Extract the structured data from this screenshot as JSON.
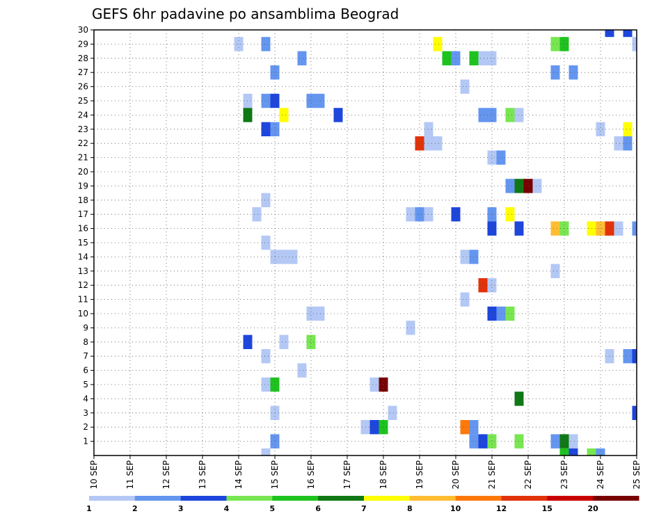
{
  "chart_data": {
    "type": "heatmap",
    "title": "GEFS 6hr padavine po ansamblima Beograd",
    "xlabel": "",
    "ylabel": "",
    "x_tick_labels": [
      "10 SEP",
      "11 SEP",
      "12 SEP",
      "13 SEP",
      "14 SEP",
      "15 SEP",
      "16 SEP",
      "17 SEP",
      "18 SEP",
      "19 SEP",
      "20 SEP",
      "21 SEP",
      "22 SEP",
      "23 SEP",
      "24 SEP",
      "25 SEP"
    ],
    "x_range_days": [
      0,
      15
    ],
    "y_tick_labels": [
      "1",
      "2",
      "3",
      "4",
      "5",
      "6",
      "7",
      "8",
      "9",
      "10",
      "11",
      "12",
      "13",
      "14",
      "15",
      "16",
      "17",
      "18",
      "19",
      "20",
      "21",
      "22",
      "23",
      "24",
      "25",
      "26",
      "27",
      "28",
      "29",
      "30"
    ],
    "y_range": [
      0,
      30
    ],
    "grid": true,
    "legend": {
      "placement": "bottom",
      "colors": [
        "#b4c8f5",
        "#6496f0",
        "#1e46dc",
        "#78e650",
        "#1ec31e",
        "#0f7814",
        "#ffff00",
        "#ffbe32",
        "#ff780a",
        "#e1320a",
        "#c80000",
        "#780000"
      ],
      "labels": [
        "1",
        "2",
        "3",
        "4",
        "5",
        "6",
        "7",
        "8",
        "10",
        "12",
        "15",
        "20"
      ]
    },
    "cells": [
      {
        "member": 30,
        "day": 14.25,
        "cat": 3
      },
      {
        "member": 30,
        "day": 14.75,
        "cat": 3
      },
      {
        "member": 29,
        "day": 4.0,
        "cat": 1
      },
      {
        "member": 29,
        "day": 4.75,
        "cat": 2
      },
      {
        "member": 29,
        "day": 9.5,
        "cat": 7
      },
      {
        "member": 29,
        "day": 12.75,
        "cat": 4
      },
      {
        "member": 29,
        "day": 13.0,
        "cat": 5
      },
      {
        "member": 29,
        "day": 15.0,
        "cat": 1
      },
      {
        "member": 28,
        "day": 5.75,
        "cat": 2
      },
      {
        "member": 28,
        "day": 9.75,
        "cat": 5
      },
      {
        "member": 28,
        "day": 10.0,
        "cat": 2
      },
      {
        "member": 28,
        "day": 10.5,
        "cat": 5
      },
      {
        "member": 28,
        "day": 10.75,
        "cat": 1
      },
      {
        "member": 28,
        "day": 11.0,
        "cat": 1
      },
      {
        "member": 27,
        "day": 5.0,
        "cat": 2
      },
      {
        "member": 27,
        "day": 12.75,
        "cat": 2
      },
      {
        "member": 27,
        "day": 13.25,
        "cat": 2
      },
      {
        "member": 26,
        "day": 10.25,
        "cat": 1
      },
      {
        "member": 25,
        "day": 4.25,
        "cat": 1
      },
      {
        "member": 25,
        "day": 4.75,
        "cat": 2
      },
      {
        "member": 25,
        "day": 5.0,
        "cat": 3
      },
      {
        "member": 25,
        "day": 6.0,
        "cat": 2
      },
      {
        "member": 25,
        "day": 6.25,
        "cat": 2
      },
      {
        "member": 24,
        "day": 4.25,
        "cat": 6
      },
      {
        "member": 24,
        "day": 5.25,
        "cat": 7
      },
      {
        "member": 24,
        "day": 6.75,
        "cat": 3
      },
      {
        "member": 24,
        "day": 10.75,
        "cat": 2
      },
      {
        "member": 24,
        "day": 11.0,
        "cat": 2
      },
      {
        "member": 24,
        "day": 11.5,
        "cat": 4
      },
      {
        "member": 24,
        "day": 11.75,
        "cat": 1
      },
      {
        "member": 23,
        "day": 4.75,
        "cat": 3
      },
      {
        "member": 23,
        "day": 5.0,
        "cat": 2
      },
      {
        "member": 23,
        "day": 9.25,
        "cat": 1
      },
      {
        "member": 23,
        "day": 14.0,
        "cat": 1
      },
      {
        "member": 23,
        "day": 14.75,
        "cat": 7
      },
      {
        "member": 22,
        "day": 9.0,
        "cat": 10
      },
      {
        "member": 22,
        "day": 9.25,
        "cat": 1
      },
      {
        "member": 22,
        "day": 9.5,
        "cat": 1
      },
      {
        "member": 22,
        "day": 14.5,
        "cat": 1
      },
      {
        "member": 22,
        "day": 14.75,
        "cat": 2
      },
      {
        "member": 21,
        "day": 11.0,
        "cat": 1
      },
      {
        "member": 21,
        "day": 11.25,
        "cat": 2
      },
      {
        "member": 19,
        "day": 11.5,
        "cat": 2
      },
      {
        "member": 19,
        "day": 11.75,
        "cat": 6
      },
      {
        "member": 19,
        "day": 12.0,
        "cat": 12
      },
      {
        "member": 19,
        "day": 12.25,
        "cat": 1
      },
      {
        "member": 18,
        "day": 4.75,
        "cat": 1
      },
      {
        "member": 17,
        "day": 4.5,
        "cat": 1
      },
      {
        "member": 17,
        "day": 8.75,
        "cat": 1
      },
      {
        "member": 17,
        "day": 9.0,
        "cat": 2
      },
      {
        "member": 17,
        "day": 9.25,
        "cat": 1
      },
      {
        "member": 17,
        "day": 10.0,
        "cat": 3
      },
      {
        "member": 17,
        "day": 11.0,
        "cat": 2
      },
      {
        "member": 17,
        "day": 11.5,
        "cat": 7
      },
      {
        "member": 16,
        "day": 11.0,
        "cat": 3
      },
      {
        "member": 16,
        "day": 11.75,
        "cat": 3
      },
      {
        "member": 16,
        "day": 12.75,
        "cat": 8
      },
      {
        "member": 16,
        "day": 13.0,
        "cat": 4
      },
      {
        "member": 16,
        "day": 13.75,
        "cat": 7
      },
      {
        "member": 16,
        "day": 14.0,
        "cat": 8
      },
      {
        "member": 16,
        "day": 14.25,
        "cat": 10
      },
      {
        "member": 16,
        "day": 14.5,
        "cat": 1
      },
      {
        "member": 16,
        "day": 15.0,
        "cat": 2
      },
      {
        "member": 15,
        "day": 4.75,
        "cat": 1
      },
      {
        "member": 14,
        "day": 5.0,
        "cat": 1
      },
      {
        "member": 14,
        "day": 5.25,
        "cat": 1
      },
      {
        "member": 14,
        "day": 5.5,
        "cat": 1
      },
      {
        "member": 14,
        "day": 10.25,
        "cat": 1
      },
      {
        "member": 14,
        "day": 10.5,
        "cat": 2
      },
      {
        "member": 13,
        "day": 12.75,
        "cat": 1
      },
      {
        "member": 12,
        "day": 10.75,
        "cat": 10
      },
      {
        "member": 12,
        "day": 11.0,
        "cat": 1
      },
      {
        "member": 11,
        "day": 10.25,
        "cat": 1
      },
      {
        "member": 10,
        "day": 6.0,
        "cat": 1
      },
      {
        "member": 10,
        "day": 6.25,
        "cat": 1
      },
      {
        "member": 10,
        "day": 11.0,
        "cat": 3
      },
      {
        "member": 10,
        "day": 11.25,
        "cat": 2
      },
      {
        "member": 10,
        "day": 11.5,
        "cat": 4
      },
      {
        "member": 9,
        "day": 8.75,
        "cat": 1
      },
      {
        "member": 8,
        "day": 4.25,
        "cat": 3
      },
      {
        "member": 8,
        "day": 5.25,
        "cat": 1
      },
      {
        "member": 8,
        "day": 6.0,
        "cat": 4
      },
      {
        "member": 7,
        "day": 4.75,
        "cat": 1
      },
      {
        "member": 7,
        "day": 14.25,
        "cat": 1
      },
      {
        "member": 7,
        "day": 14.75,
        "cat": 2
      },
      {
        "member": 7,
        "day": 15.0,
        "cat": 3
      },
      {
        "member": 6,
        "day": 5.75,
        "cat": 1
      },
      {
        "member": 5,
        "day": 4.75,
        "cat": 1
      },
      {
        "member": 5,
        "day": 5.0,
        "cat": 5
      },
      {
        "member": 5,
        "day": 7.75,
        "cat": 1
      },
      {
        "member": 5,
        "day": 8.0,
        "cat": 12
      },
      {
        "member": 4,
        "day": 11.75,
        "cat": 6
      },
      {
        "member": 3,
        "day": 5.0,
        "cat": 1
      },
      {
        "member": 3,
        "day": 8.25,
        "cat": 1
      },
      {
        "member": 3,
        "day": 15.0,
        "cat": 3
      },
      {
        "member": 2,
        "day": 7.5,
        "cat": 1
      },
      {
        "member": 2,
        "day": 7.75,
        "cat": 3
      },
      {
        "member": 2,
        "day": 8.0,
        "cat": 5
      },
      {
        "member": 2,
        "day": 10.25,
        "cat": 9
      },
      {
        "member": 2,
        "day": 10.5,
        "cat": 2
      },
      {
        "member": 1,
        "day": 5.0,
        "cat": 2
      },
      {
        "member": 1,
        "day": 10.5,
        "cat": 2
      },
      {
        "member": 1,
        "day": 10.75,
        "cat": 3
      },
      {
        "member": 1,
        "day": 11.0,
        "cat": 4
      },
      {
        "member": 1,
        "day": 11.75,
        "cat": 4
      },
      {
        "member": 1,
        "day": 12.75,
        "cat": 2
      },
      {
        "member": 1,
        "day": 13.0,
        "cat": 6
      },
      {
        "member": 1,
        "day": 13.25,
        "cat": 1
      },
      {
        "member": 0,
        "day": 4.75,
        "cat": 1
      },
      {
        "member": 0,
        "day": 13.0,
        "cat": 5
      },
      {
        "member": 0,
        "day": 13.25,
        "cat": 3
      },
      {
        "member": 0,
        "day": 13.75,
        "cat": 4
      },
      {
        "member": 0,
        "day": 14.0,
        "cat": 2
      }
    ]
  }
}
